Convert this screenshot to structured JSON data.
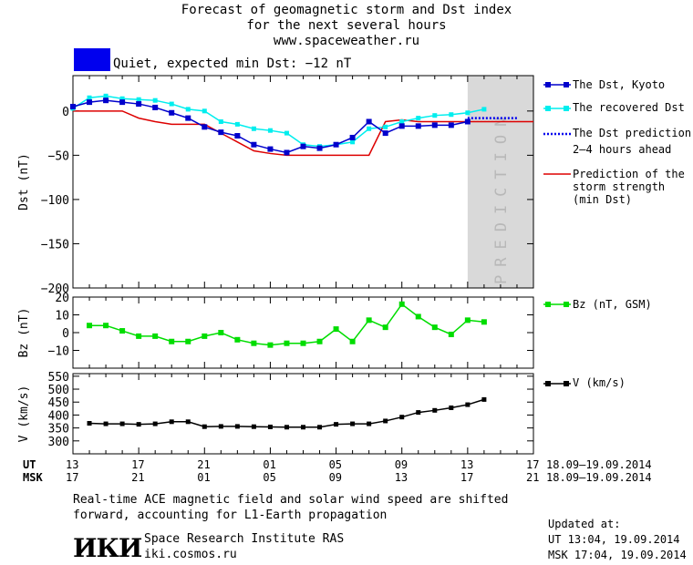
{
  "header": {
    "title_line1": "Forecast of geomagnetic storm and Dst index",
    "title_line2": "for the next several hours",
    "url": "www.spaceweather.ru",
    "status": "Quiet, expected min Dst: −12 nT",
    "status_color": "#0000ee"
  },
  "colors": {
    "dst_kyoto": "#0000cc",
    "dst_recovered": "#00eeee",
    "dst_prediction": "#0000ee",
    "storm_strength": "#dd0000",
    "bz": "#00dd00",
    "v": "#000000",
    "prediction_band": "#d9d9d9"
  },
  "prediction_label": "PREDICTION",
  "legend": {
    "dst_kyoto": "The Dst, Kyoto",
    "dst_recovered": "The recovered Dst",
    "dst_prediction_1": "The Dst prediction",
    "dst_prediction_2": "2–4 hours ahead",
    "storm_1": "Prediction of the",
    "storm_2": "storm strength",
    "storm_3": "(min Dst)",
    "bz": "Bz (nT, GSM)",
    "v": "V (km/s)"
  },
  "time_axis": {
    "ut_label": "UT",
    "msk_label": "MSK",
    "ut_ticks": [
      "13",
      "17",
      "21",
      "01",
      "05",
      "09",
      "13",
      "17"
    ],
    "msk_ticks": [
      "17",
      "21",
      "01",
      "05",
      "09",
      "13",
      "17",
      "21"
    ],
    "date_range_ut": "18.09–19.09.2014",
    "date_range_msk": "18.09–19.09.2014"
  },
  "footer": {
    "note_line1": "Real-time ACE magnetic field and solar wind speed are shifted",
    "note_line2": "forward, accounting for L1-Earth propagation",
    "logo": "ИКИ",
    "institute": "Space Research Institute RAS",
    "site": "iki.cosmos.ru",
    "updated_label": "Updated at:",
    "updated_ut": "UT   13:04, 19.09.2014",
    "updated_msk": "MSK 17:04, 19.09.2014"
  },
  "chart_data": [
    {
      "type": "line",
      "ylabel": "Dst (nT)",
      "ylim": [
        -200,
        40
      ],
      "xlim": [
        0,
        28
      ],
      "yticks": [
        0,
        -50,
        -100,
        -150,
        -200
      ],
      "prediction_region": [
        24,
        28
      ],
      "series": [
        {
          "name": "The Dst, Kyoto",
          "x": [
            0,
            1,
            2,
            3,
            4,
            5,
            6,
            7,
            8,
            9,
            10,
            11,
            12,
            13,
            14,
            15,
            16,
            17,
            18,
            19,
            20,
            21,
            22,
            23,
            24
          ],
          "y": [
            5,
            10,
            12,
            10,
            8,
            4,
            -2,
            -8,
            -18,
            -24,
            -28,
            -38,
            -43,
            -47,
            -40,
            -42,
            -38,
            -30,
            -12,
            -25,
            -17,
            -17,
            -16,
            -16,
            -12
          ]
        },
        {
          "name": "The recovered Dst",
          "x": [
            0,
            1,
            2,
            3,
            4,
            5,
            6,
            7,
            8,
            9,
            10,
            11,
            12,
            13,
            14,
            15,
            16,
            17,
            18,
            19,
            20,
            21,
            22,
            23,
            24,
            25
          ],
          "y": [
            3,
            15,
            17,
            14,
            13,
            12,
            8,
            2,
            0,
            -12,
            -15,
            -20,
            -22,
            -25,
            -38,
            -40,
            -38,
            -35,
            -20,
            -18,
            -12,
            -8,
            -5,
            -4,
            -2,
            2
          ]
        },
        {
          "name": "The Dst prediction 2–4 hours ahead",
          "x": [
            24,
            25,
            26,
            27
          ],
          "y": [
            -8,
            -8,
            -8,
            -8
          ]
        },
        {
          "name": "Prediction of the storm strength (min Dst)",
          "x": [
            0,
            3,
            4,
            5,
            6,
            7,
            8,
            9,
            10,
            11,
            12,
            13,
            14,
            15,
            16,
            17,
            18,
            19,
            20,
            21,
            22,
            28
          ],
          "y": [
            0,
            0,
            -8,
            -12,
            -15,
            -15,
            -15,
            -25,
            -35,
            -45,
            -48,
            -50,
            -50,
            -50,
            -50,
            -50,
            -50,
            -12,
            -10,
            -12,
            -12,
            -12
          ]
        }
      ]
    },
    {
      "type": "line",
      "ylabel": "Bz (nT)",
      "ylim": [
        -20,
        20
      ],
      "xlim": [
        0,
        28
      ],
      "yticks": [
        20,
        10,
        0,
        -10
      ],
      "series": [
        {
          "name": "Bz (nT, GSM)",
          "x": [
            1,
            2,
            3,
            4,
            5,
            6,
            7,
            8,
            9,
            10,
            11,
            12,
            13,
            14,
            15,
            16,
            17,
            18,
            19,
            20,
            21,
            22,
            23,
            24,
            25
          ],
          "y": [
            4,
            4,
            1,
            -2,
            -2,
            -5,
            -5,
            -2,
            0,
            -4,
            -6,
            -7,
            -6,
            -6,
            -5,
            2,
            -5,
            7,
            3,
            16,
            9,
            3,
            -1,
            7,
            6
          ]
        }
      ]
    },
    {
      "type": "line",
      "ylabel": "V (km/s)",
      "ylim": [
        250,
        560
      ],
      "xlim": [
        0,
        28
      ],
      "yticks": [
        550,
        500,
        450,
        400,
        350,
        300
      ],
      "series": [
        {
          "name": "V (km/s)",
          "x": [
            1,
            2,
            3,
            4,
            5,
            6,
            7,
            8,
            9,
            10,
            11,
            12,
            13,
            14,
            15,
            16,
            17,
            18,
            19,
            20,
            21,
            22,
            23,
            24,
            25
          ],
          "y": [
            368,
            366,
            366,
            364,
            366,
            374,
            374,
            355,
            356,
            356,
            355,
            354,
            353,
            353,
            353,
            364,
            366,
            366,
            377,
            392,
            410,
            418,
            428,
            440,
            460
          ]
        }
      ]
    }
  ]
}
